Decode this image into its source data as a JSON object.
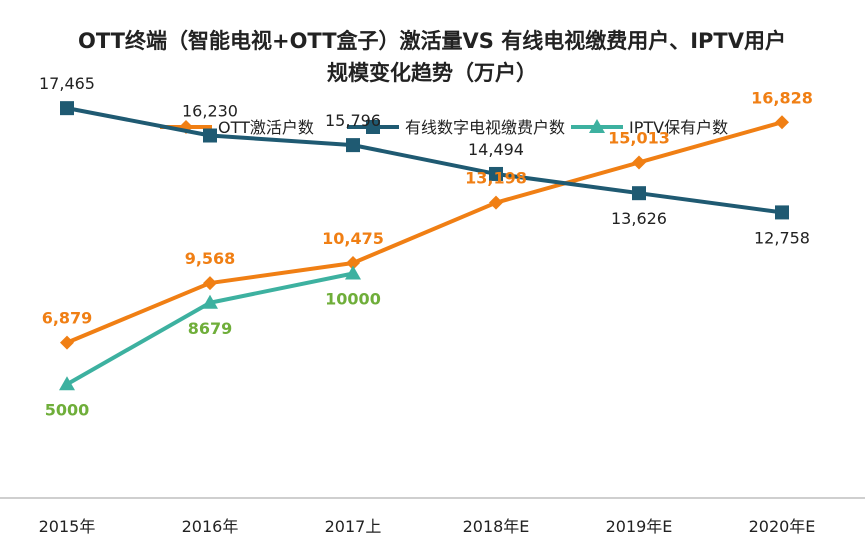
{
  "chart_data": {
    "type": "line",
    "title_line1": "OTT终端（智能电视+OTT盒子）激活量VS 有线电视缴费用户、IPTV用户",
    "title_line2": "规模变化趋势（万户）",
    "categories": [
      "2015年",
      "2016年",
      "2017上",
      "2018年E",
      "2019年E",
      "2020年E"
    ],
    "ylim": [
      0,
      20000
    ],
    "grid": false,
    "legend_position": "top",
    "series": [
      {
        "name": "OTT激活户数",
        "values": [
          6879,
          9568,
          10475,
          13198,
          15013,
          16828
        ],
        "labels": [
          "6,879",
          "9,568",
          "10,475",
          "13,198",
          "15,013",
          "16,828"
        ],
        "color": "#F07F14",
        "label_color": "#F07F14",
        "label_bold": true,
        "marker": "diamond",
        "label_side": [
          "above",
          "above",
          "above",
          "above",
          "above",
          "above"
        ]
      },
      {
        "name": "有线数字电视缴费户数",
        "values": [
          17465,
          16230,
          15796,
          14494,
          13626,
          12758
        ],
        "labels": [
          "17,465",
          "16,230",
          "15,796",
          "14,494",
          "13,626",
          "12,758"
        ],
        "color": "#1F5A72",
        "label_color": "#222222",
        "label_bold": false,
        "marker": "square",
        "label_side": [
          "above",
          "above",
          "above",
          "above",
          "below",
          "below"
        ]
      },
      {
        "name": "IPTV保有户数",
        "values": [
          5000,
          8679,
          10000,
          null,
          null,
          null
        ],
        "labels": [
          "5000",
          "8679",
          "10000",
          "",
          "",
          ""
        ],
        "color": "#3DB1A0",
        "label_color": "#6FAE3A",
        "label_bold": true,
        "marker": "triangle",
        "label_side": [
          "below",
          "below",
          "below",
          "below",
          "below",
          "below"
        ]
      }
    ]
  }
}
